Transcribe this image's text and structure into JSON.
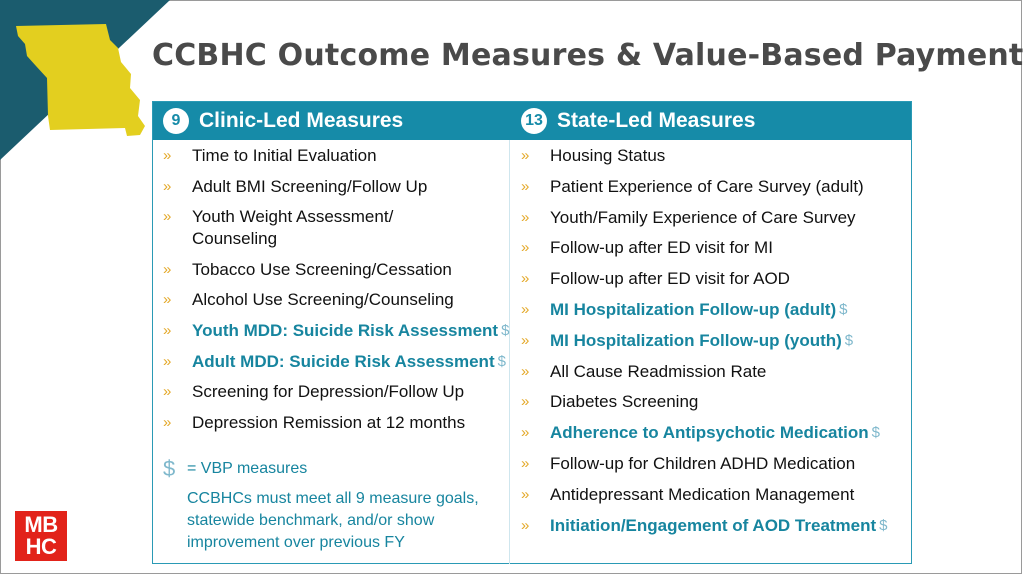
{
  "title": "CCBHC Outcome Measures & Value-Based Payments",
  "colors": {
    "accent": "#168ba8",
    "bullet": "#e4a92a",
    "highlight_text": "#17859f",
    "map_yellow": "#e3cf1f",
    "corner": "#1b5c6e",
    "logo_red": "#e2231a"
  },
  "icons": {
    "corner": "missouri-map-icon",
    "bullet": "chevron-bullet-icon",
    "dollar": "dollar-icon"
  },
  "clinic": {
    "count": "9",
    "heading": "Clinic-Led Measures",
    "items": [
      {
        "text": "Time to Initial Evaluation",
        "vbp": false
      },
      {
        "text": "Adult BMI Screening/Follow Up",
        "vbp": false
      },
      {
        "text": "Youth Weight Assessment/ Counseling",
        "vbp": false
      },
      {
        "text": "Tobacco Use Screening/Cessation",
        "vbp": false
      },
      {
        "text": "Alcohol Use Screening/Counseling",
        "vbp": false
      },
      {
        "text": "Youth MDD: Suicide Risk Assessment",
        "vbp": true
      },
      {
        "text": "Adult MDD: Suicide Risk Assessment",
        "vbp": true
      },
      {
        "text": "Screening for Depression/Follow Up",
        "vbp": false
      },
      {
        "text": "Depression Remission at 12 months",
        "vbp": false
      }
    ]
  },
  "state": {
    "count": "13",
    "heading": "State-Led Measures",
    "items": [
      {
        "text": "Housing Status",
        "vbp": false
      },
      {
        "text": "Patient Experience of Care Survey (adult)",
        "vbp": false
      },
      {
        "text": "Youth/Family Experience of Care Survey",
        "vbp": false
      },
      {
        "text": "Follow-up after ED visit for MI",
        "vbp": false
      },
      {
        "text": "Follow-up after ED visit for AOD",
        "vbp": false
      },
      {
        "text": "MI Hospitalization Follow-up (adult)",
        "vbp": true
      },
      {
        "text": "MI Hospitalization Follow-up (youth)",
        "vbp": true
      },
      {
        "text": "All Cause Readmission Rate",
        "vbp": false
      },
      {
        "text": "Diabetes Screening",
        "vbp": false
      },
      {
        "text": "Adherence to Antipsychotic Medication",
        "vbp": true
      },
      {
        "text": "Follow-up for Children ADHD Medication",
        "vbp": false
      },
      {
        "text": "Antidepressant Medication Management",
        "vbp": false
      },
      {
        "text": "Initiation/Engagement of AOD Treatment",
        "vbp": true
      }
    ]
  },
  "legend": {
    "symbol": "$",
    "label": "= VBP measures",
    "note": "CCBHCs must meet all 9 measure goals, statewide benchmark, and/or show improvement over previous FY"
  },
  "bullet_char": "»",
  "logo": {
    "line1": "MB",
    "line2": "HC"
  }
}
